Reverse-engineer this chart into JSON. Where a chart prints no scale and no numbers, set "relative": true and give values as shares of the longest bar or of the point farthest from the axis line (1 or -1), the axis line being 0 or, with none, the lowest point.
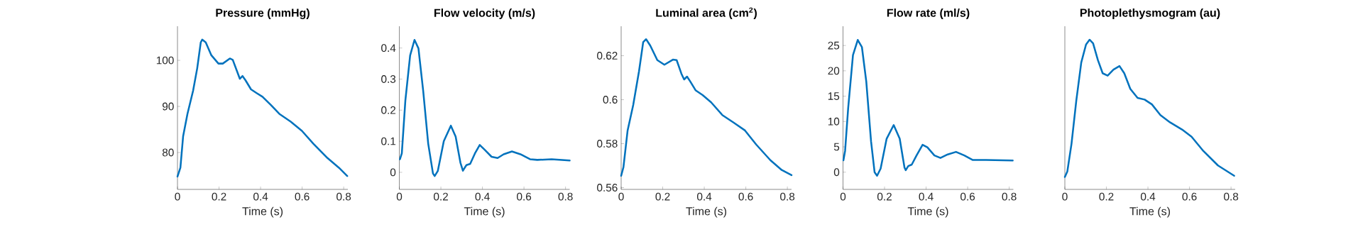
{
  "chart_data": [
    {
      "type": "line",
      "title": "Pressure (mmHg)",
      "xlabel": "Time (s)",
      "color": "#0072bd",
      "xlim": [
        0,
        0.82
      ],
      "ylim": [
        72,
        107.4
      ],
      "xticks": [
        0,
        0.2,
        0.4,
        0.6,
        0.8
      ],
      "yticks": [
        80,
        90,
        100
      ],
      "x": [
        0,
        0.014,
        0.027,
        0.048,
        0.075,
        0.095,
        0.112,
        0.119,
        0.136,
        0.163,
        0.197,
        0.218,
        0.252,
        0.266,
        0.286,
        0.3,
        0.313,
        0.327,
        0.354,
        0.381,
        0.409,
        0.45,
        0.49,
        0.545,
        0.599,
        0.654,
        0.722,
        0.777,
        0.817
      ],
      "values": [
        74.8,
        76.7,
        83.5,
        88.4,
        93.4,
        98.3,
        103.9,
        104.5,
        103.9,
        101.1,
        99.3,
        99.3,
        100.4,
        100.1,
        97.7,
        96.0,
        96.6,
        95.7,
        93.7,
        92.9,
        92.1,
        90.3,
        88.4,
        86.7,
        84.7,
        81.9,
        78.8,
        76.7,
        74.9
      ]
    },
    {
      "type": "line",
      "title": "Flow velocity (m/s)",
      "xlabel": "Time (s)",
      "color": "#0072bd",
      "xlim": [
        0,
        0.82
      ],
      "ylim": [
        -0.055,
        0.47
      ],
      "xticks": [
        0,
        0.2,
        0.4,
        0.6,
        0.8
      ],
      "yticks": [
        0,
        0.1,
        0.2,
        0.3,
        0.4
      ],
      "x": [
        0.003,
        0.012,
        0.029,
        0.052,
        0.073,
        0.092,
        0.115,
        0.139,
        0.162,
        0.17,
        0.185,
        0.214,
        0.248,
        0.271,
        0.294,
        0.306,
        0.315,
        0.323,
        0.341,
        0.364,
        0.387,
        0.41,
        0.444,
        0.473,
        0.502,
        0.542,
        0.583,
        0.629,
        0.664,
        0.733,
        0.82
      ],
      "values": [
        0.042,
        0.061,
        0.231,
        0.376,
        0.426,
        0.399,
        0.261,
        0.092,
        -0.004,
        -0.012,
        0.004,
        0.1,
        0.15,
        0.115,
        0.031,
        0.005,
        0.015,
        0.023,
        0.027,
        0.061,
        0.088,
        0.073,
        0.05,
        0.046,
        0.058,
        0.067,
        0.058,
        0.042,
        0.04,
        0.042,
        0.038
      ]
    },
    {
      "type": "line",
      "title": "Luminal area (cm$^{2}$)",
      "xlabel": "Time (s)",
      "color": "#0072bd",
      "xlim": [
        0,
        0.82
      ],
      "ylim": [
        0.5592,
        0.6334
      ],
      "xticks": [
        0,
        0.2,
        0.4,
        0.6,
        0.8
      ],
      "yticks": [
        0.56,
        0.58,
        0.6,
        0.62
      ],
      "x": [
        0,
        0.011,
        0.031,
        0.058,
        0.086,
        0.106,
        0.12,
        0.14,
        0.174,
        0.208,
        0.249,
        0.267,
        0.29,
        0.303,
        0.317,
        0.331,
        0.358,
        0.392,
        0.433,
        0.487,
        0.541,
        0.596,
        0.65,
        0.718,
        0.773,
        0.82
      ],
      "values": [
        0.5654,
        0.5693,
        0.586,
        0.5976,
        0.613,
        0.6262,
        0.6275,
        0.6246,
        0.618,
        0.6159,
        0.6182,
        0.618,
        0.6118,
        0.6092,
        0.6105,
        0.6085,
        0.6043,
        0.6021,
        0.5988,
        0.593,
        0.5896,
        0.586,
        0.5796,
        0.5725,
        0.568,
        0.5657
      ]
    },
    {
      "type": "line",
      "title": "Flow rate (ml/s)",
      "xlabel": "Time (s)",
      "color": "#0072bd",
      "xlim": [
        0,
        0.82
      ],
      "ylim": [
        -3.4,
        28.8
      ],
      "xticks": [
        0,
        0.2,
        0.4,
        0.6,
        0.8
      ],
      "yticks": [
        0,
        5,
        10,
        15,
        20,
        25
      ],
      "x": [
        0.002,
        0.01,
        0.025,
        0.048,
        0.071,
        0.091,
        0.112,
        0.135,
        0.152,
        0.164,
        0.181,
        0.21,
        0.244,
        0.273,
        0.296,
        0.302,
        0.314,
        0.331,
        0.354,
        0.383,
        0.406,
        0.44,
        0.469,
        0.504,
        0.544,
        0.584,
        0.625,
        0.688,
        0.817
      ],
      "values": [
        2.35,
        4.2,
        12.7,
        23.1,
        26.1,
        24.7,
        17.9,
        6.1,
        0,
        -0.7,
        0.7,
        6.6,
        9.3,
        6.6,
        0.9,
        0.4,
        1.2,
        1.5,
        3.3,
        5.4,
        4.9,
        3.3,
        2.8,
        3.5,
        4.0,
        3.3,
        2.4,
        2.4,
        2.3
      ]
    },
    {
      "type": "line",
      "title": "Photoplethysmogram (au)",
      "xlabel": "Time (s)",
      "color": "#0072bd",
      "relative": true,
      "tick_labels": "x",
      "xlim": [
        0,
        0.82
      ],
      "xticks": [
        0,
        0.2,
        0.4,
        0.6,
        0.8
      ],
      "x": [
        0,
        0.012,
        0.032,
        0.055,
        0.079,
        0.102,
        0.119,
        0.136,
        0.159,
        0.182,
        0.206,
        0.234,
        0.263,
        0.286,
        0.315,
        0.35,
        0.384,
        0.419,
        0.46,
        0.506,
        0.564,
        0.61,
        0.667,
        0.737,
        0.815
      ],
      "values": [
        0.083,
        0.12,
        0.304,
        0.592,
        0.848,
        0.968,
        1.0,
        0.976,
        0.864,
        0.776,
        0.76,
        0.8,
        0.824,
        0.776,
        0.672,
        0.611,
        0.6,
        0.568,
        0.496,
        0.448,
        0.4,
        0.352,
        0.256,
        0.16,
        0.091
      ]
    }
  ]
}
